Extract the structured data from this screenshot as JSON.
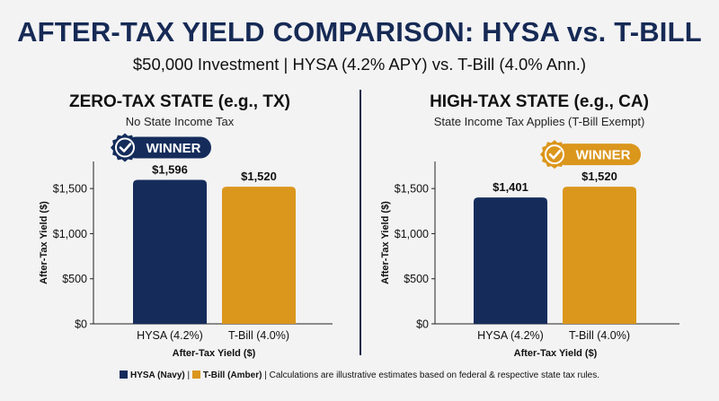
{
  "title": "AFTER-TAX YIELD COMPARISON: HYSA vs. T-BILL",
  "subtitle": "$50,000 Investment | HYSA (4.2% APY) vs. T-Bill (4.0% Ann.)",
  "colors": {
    "navy": "#152c5b",
    "amber": "#db961c",
    "heading": "#162a55"
  },
  "footer": {
    "hysa_label": "HYSA (Navy)",
    "sep1": " | ",
    "tbill_label": "T-Bill (Amber)",
    "note": " | Calculations are illustrative estimates based on federal & respective state tax rules."
  },
  "chart_data": [
    {
      "type": "bar",
      "title": "ZERO-TAX STATE (e.g., TX)",
      "subtitle": "No State Income Tax",
      "categories": [
        "HYSA (4.2%)",
        "T-Bill (4.0%)"
      ],
      "values": [
        1596,
        1520
      ],
      "value_labels": [
        "$1,596",
        "$1,520"
      ],
      "bar_colors": [
        "#152c5b",
        "#db961c"
      ],
      "xlabel": "After-Tax Yield ($)",
      "ylabel": "After-Tax Yield ($)",
      "ylim": [
        0,
        1800
      ],
      "yticks": [
        0,
        500,
        1000,
        1500
      ],
      "ytick_labels": [
        "$0",
        "$500",
        "$1,000",
        "$1,500"
      ],
      "winner_index": 0,
      "winner_label": "WINNER",
      "winner_color": "#152c5b"
    },
    {
      "type": "bar",
      "title": "HIGH-TAX STATE (e.g., CA)",
      "subtitle": "State Income Tax Applies (T-Bill Exempt)",
      "categories": [
        "HYSA (4.2%)",
        "T-Bill (4.0%)"
      ],
      "values": [
        1401,
        1520
      ],
      "value_labels": [
        "$1,401",
        "$1,520"
      ],
      "bar_colors": [
        "#152c5b",
        "#db961c"
      ],
      "xlabel": "After-Tax Yield ($)",
      "ylabel": "After-Tax Yield ($)",
      "ylim": [
        0,
        1800
      ],
      "yticks": [
        0,
        500,
        1000,
        1500
      ],
      "ytick_labels": [
        "$0",
        "$500",
        "$1,000",
        "$1,500"
      ],
      "winner_index": 1,
      "winner_label": "WINNER",
      "winner_color": "#db961c"
    }
  ]
}
